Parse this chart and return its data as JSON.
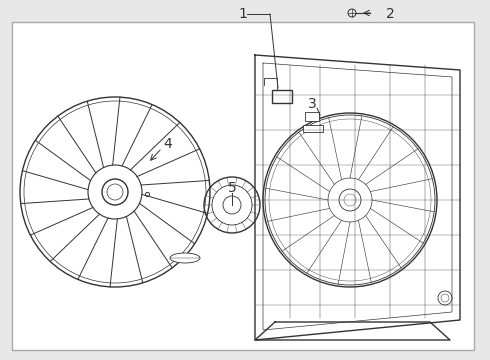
{
  "bg_color": "#e8e8e8",
  "border_color": "#aaaaaa",
  "line_color": "#333333",
  "figsize": [
    4.9,
    3.6
  ],
  "dpi": 100
}
